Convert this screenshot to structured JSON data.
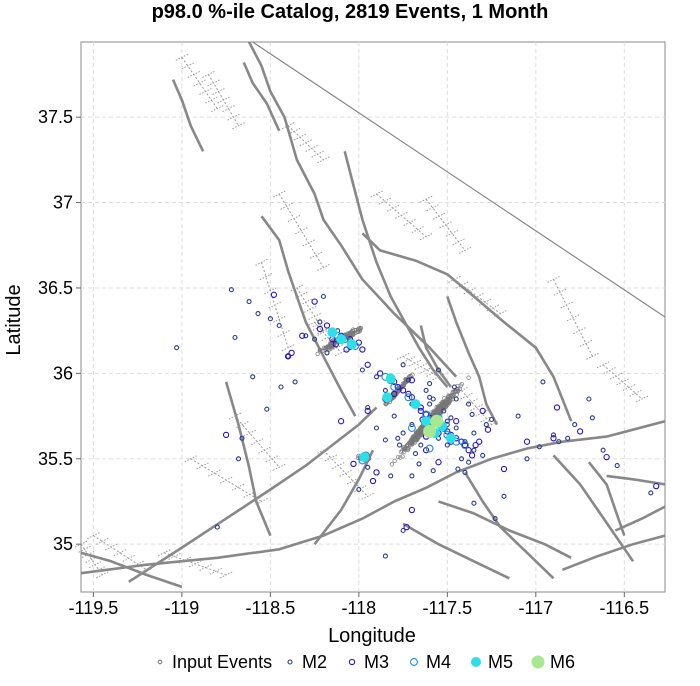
{
  "chart_data": {
    "type": "scatter",
    "title": "p98.0 %-ile Catalog, 2819 Events, 1 Month",
    "xlabel": "Longitude",
    "ylabel": "Latitude",
    "xlim": [
      -119.57,
      -116.27
    ],
    "ylim": [
      34.72,
      37.94
    ],
    "x_ticks": [
      -119.5,
      -119,
      -118.5,
      -118,
      -117.5,
      -117,
      -116.5
    ],
    "x_tick_labels": [
      "-119.5",
      "-119",
      "-118.5",
      "-118",
      "-117.5",
      "-117",
      "-116.5"
    ],
    "y_ticks": [
      35,
      35.5,
      36,
      36.5,
      37,
      37.5
    ],
    "y_tick_labels": [
      "35",
      "35.5",
      "36",
      "36.5",
      "37",
      "37.5"
    ],
    "grid": true,
    "legend_position": "bottom",
    "legend": [
      {
        "label": "Input Events",
        "color": "#777777",
        "filled": false,
        "size": 1.8
      },
      {
        "label": "M2",
        "color": "#2a3b8f",
        "filled": false,
        "size": 2.0
      },
      {
        "label": "M3",
        "color": "#2a10c8",
        "filled": false,
        "size": 2.6
      },
      {
        "label": "M4",
        "color": "#1e8ad8",
        "filled": false,
        "size": 3.4
      },
      {
        "label": "M5",
        "color": "#2ce0e8",
        "filled": true,
        "size": 5.0
      },
      {
        "label": "M6",
        "color": "#a8e890",
        "filled": true,
        "size": 6.5
      }
    ],
    "series": [
      {
        "name": "M2",
        "color": "#2a3b8f",
        "filled": false,
        "size": 2.0,
        "x": [
          -118.1,
          -118.05,
          -117.98,
          -117.9,
          -117.85,
          -117.95,
          -118.12,
          -117.72,
          -117.6,
          -117.5,
          -117.45,
          -117.4,
          -117.35,
          -117.3,
          -117.7,
          -117.55,
          -117.65,
          -117.75,
          -117.8,
          -117.42,
          -117.38,
          -117.62,
          -117.58,
          -117.52,
          -117.48,
          -117.68,
          -117.78,
          -118.22,
          -118.25,
          -118.18,
          -117.82,
          -117.66,
          -117.58,
          -117.44,
          -117.5,
          -117.7,
          -117.6,
          -117.9,
          -117.75,
          -117.55,
          -117.46,
          -117.36,
          -117.28,
          -116.98,
          -116.9,
          -116.87,
          -116.78,
          -116.68,
          -116.62,
          -116.54,
          -116.82,
          -116.35,
          -116.96,
          -116.7,
          -117.1,
          -117.25,
          -117.35,
          -117.05,
          -117.45,
          -117.38,
          -118.4,
          -118.45,
          -118.5,
          -118.57,
          -118.62,
          -118.72,
          -118.66,
          -118.44,
          -118.36,
          -118.3,
          -118.2,
          -118.6,
          -118.52,
          -118.68,
          -119.03,
          -118.7,
          -118.8,
          -117.85,
          -117.95,
          -118.0,
          -117.77,
          -117.6,
          -117.35,
          -117.18,
          -117.23,
          -117.5,
          -117.7,
          -117.75,
          -117.85,
          -117.4
        ],
        "y": [
          36.2,
          36.15,
          36.02,
          35.98,
          35.9,
          35.8,
          36.25,
          35.96,
          35.82,
          35.72,
          35.68,
          35.6,
          35.55,
          35.52,
          35.7,
          35.62,
          35.58,
          35.65,
          35.75,
          35.5,
          35.48,
          35.9,
          35.85,
          35.78,
          35.74,
          35.53,
          35.62,
          36.3,
          36.2,
          36.12,
          35.4,
          35.47,
          35.43,
          35.44,
          35.58,
          35.82,
          35.94,
          35.68,
          36.05,
          36.02,
          35.92,
          35.76,
          35.7,
          35.57,
          35.64,
          35.6,
          35.7,
          35.74,
          35.55,
          35.46,
          35.62,
          35.3,
          35.95,
          35.85,
          35.75,
          35.73,
          35.65,
          35.5,
          35.85,
          35.82,
          36.1,
          36.28,
          36.32,
          36.35,
          36.42,
          36.49,
          35.62,
          35.92,
          35.95,
          36.22,
          36.45,
          35.98,
          35.79,
          35.5,
          36.15,
          36.21,
          35.1,
          34.93,
          35.45,
          35.32,
          35.58,
          35.86,
          35.24,
          35.28,
          35.15,
          35.7,
          35.4,
          35.08,
          35.61,
          35.42
        ]
      },
      {
        "name": "M3",
        "color": "#2a10c8",
        "filled": false,
        "size": 2.6,
        "x": [
          -118.18,
          -118.1,
          -118.0,
          -117.98,
          -117.95,
          -117.88,
          -117.82,
          -117.8,
          -117.75,
          -117.72,
          -117.7,
          -117.68,
          -117.65,
          -117.62,
          -117.6,
          -117.58,
          -117.55,
          -117.52,
          -117.5,
          -117.48,
          -117.45,
          -117.42,
          -117.4,
          -118.15,
          -118.05,
          -117.78,
          -117.65,
          -117.55,
          -117.48,
          -117.38,
          -117.7,
          -117.85,
          -117.97,
          -118.22,
          -118.13,
          -118.07,
          -117.58,
          -117.62,
          -117.45,
          -117.34,
          -117.32,
          -118.32,
          -118.38,
          -118.48,
          -118.25,
          -118.4,
          -118.75,
          -118.1,
          -117.92,
          -117.9,
          -116.75,
          -116.9,
          -116.88,
          -116.6,
          -116.32,
          -117.05,
          -117.3,
          -117.36,
          -117.55,
          -117.62,
          -118.03,
          -118.15,
          -117.95,
          -117.8,
          -117.73,
          -117.7,
          -117.64,
          -117.27,
          -117.18
        ],
        "y": [
          36.28,
          36.22,
          36.18,
          36.14,
          36.05,
          36.0,
          35.98,
          35.95,
          35.9,
          35.88,
          35.86,
          35.82,
          35.78,
          35.76,
          35.74,
          35.72,
          35.7,
          35.68,
          35.66,
          35.64,
          35.62,
          35.6,
          35.58,
          36.25,
          36.2,
          35.92,
          35.8,
          35.65,
          35.6,
          35.55,
          35.96,
          35.85,
          35.52,
          36.26,
          36.17,
          36.14,
          35.66,
          35.63,
          35.72,
          35.58,
          35.6,
          36.22,
          36.12,
          36.46,
          36.42,
          36.1,
          35.64,
          35.72,
          35.37,
          35.42,
          35.66,
          35.62,
          35.8,
          35.51,
          35.34,
          35.6,
          35.78,
          35.52,
          35.48,
          35.55,
          35.47,
          36.2,
          35.78,
          35.88,
          35.1,
          35.2,
          35.73,
          35.67,
          35.44
        ]
      },
      {
        "name": "M4",
        "color": "#1e8ad8",
        "filled": false,
        "size": 3.4,
        "x": [
          -118.15,
          -118.08,
          -118.02,
          -117.85,
          -117.8,
          -117.72,
          -117.68,
          -117.62,
          -117.58,
          -117.52,
          -117.5,
          -117.45,
          -117.4,
          -117.96,
          -117.98,
          -117.6,
          -117.7,
          -117.55,
          -117.82,
          -118.12,
          -117.48
        ],
        "y": [
          36.24,
          36.2,
          36.16,
          35.98,
          35.92,
          35.86,
          35.82,
          35.76,
          35.72,
          35.68,
          35.64,
          35.6,
          35.58,
          35.52,
          35.49,
          35.56,
          35.68,
          35.74,
          35.96,
          36.22,
          35.62
        ]
      },
      {
        "name": "M5",
        "color": "#2ce0e8",
        "filled": true,
        "size": 5.0,
        "x": [
          -118.15,
          -118.1,
          -118.04,
          -117.82,
          -117.84,
          -117.68,
          -117.62,
          -117.57,
          -117.53,
          -117.48,
          -117.97
        ],
        "y": [
          36.24,
          36.2,
          36.17,
          35.97,
          35.86,
          35.82,
          35.72,
          35.65,
          35.69,
          35.62,
          35.51
        ]
      },
      {
        "name": "M6",
        "color": "#a8e890",
        "filled": true,
        "size": 6.5,
        "x": [
          -117.56,
          -117.6
        ],
        "y": [
          35.72,
          35.66
        ]
      }
    ],
    "input_events": {
      "count": 2819
    }
  }
}
